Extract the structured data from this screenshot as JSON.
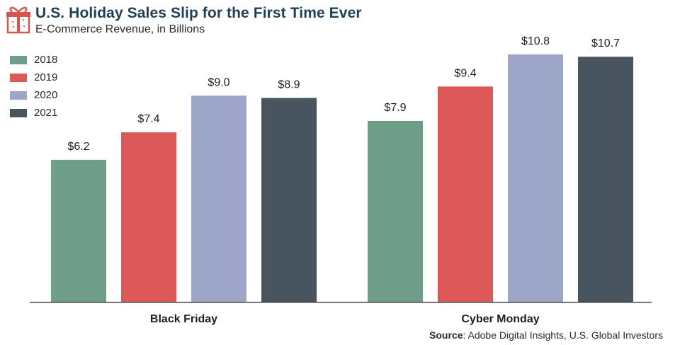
{
  "header": {
    "title": "U.S. Holiday Sales Slip for the First Time Ever",
    "subtitle": "E-Commerce Revenue, in Billions"
  },
  "source": {
    "label": "Source",
    "text": ": Adobe Digital Insights, U.S. Global Investors"
  },
  "colors": {
    "2018": "#6e9e88",
    "2019": "#dd5958",
    "2020": "#9da5c8",
    "2021": "#48555e",
    "icon": "#d9534f"
  },
  "icons": {
    "header": "gift-icon"
  },
  "chart_data": {
    "type": "bar",
    "categories": [
      "Black Friday",
      "Cyber Monday"
    ],
    "series": [
      {
        "name": "2018",
        "values": [
          6.2,
          7.9
        ],
        "labels": [
          "$6.2",
          "$7.9"
        ]
      },
      {
        "name": "2019",
        "values": [
          7.4,
          9.4
        ],
        "labels": [
          "$7.4",
          "$9.4"
        ]
      },
      {
        "name": "2020",
        "values": [
          9.0,
          10.8
        ],
        "labels": [
          "$9.0",
          "$10.8"
        ]
      },
      {
        "name": "2021",
        "values": [
          8.9,
          10.7
        ],
        "labels": [
          "$8.9",
          "$10.7"
        ]
      }
    ],
    "ylim": [
      0,
      10.8
    ],
    "grid": false,
    "legend": "top-left"
  }
}
